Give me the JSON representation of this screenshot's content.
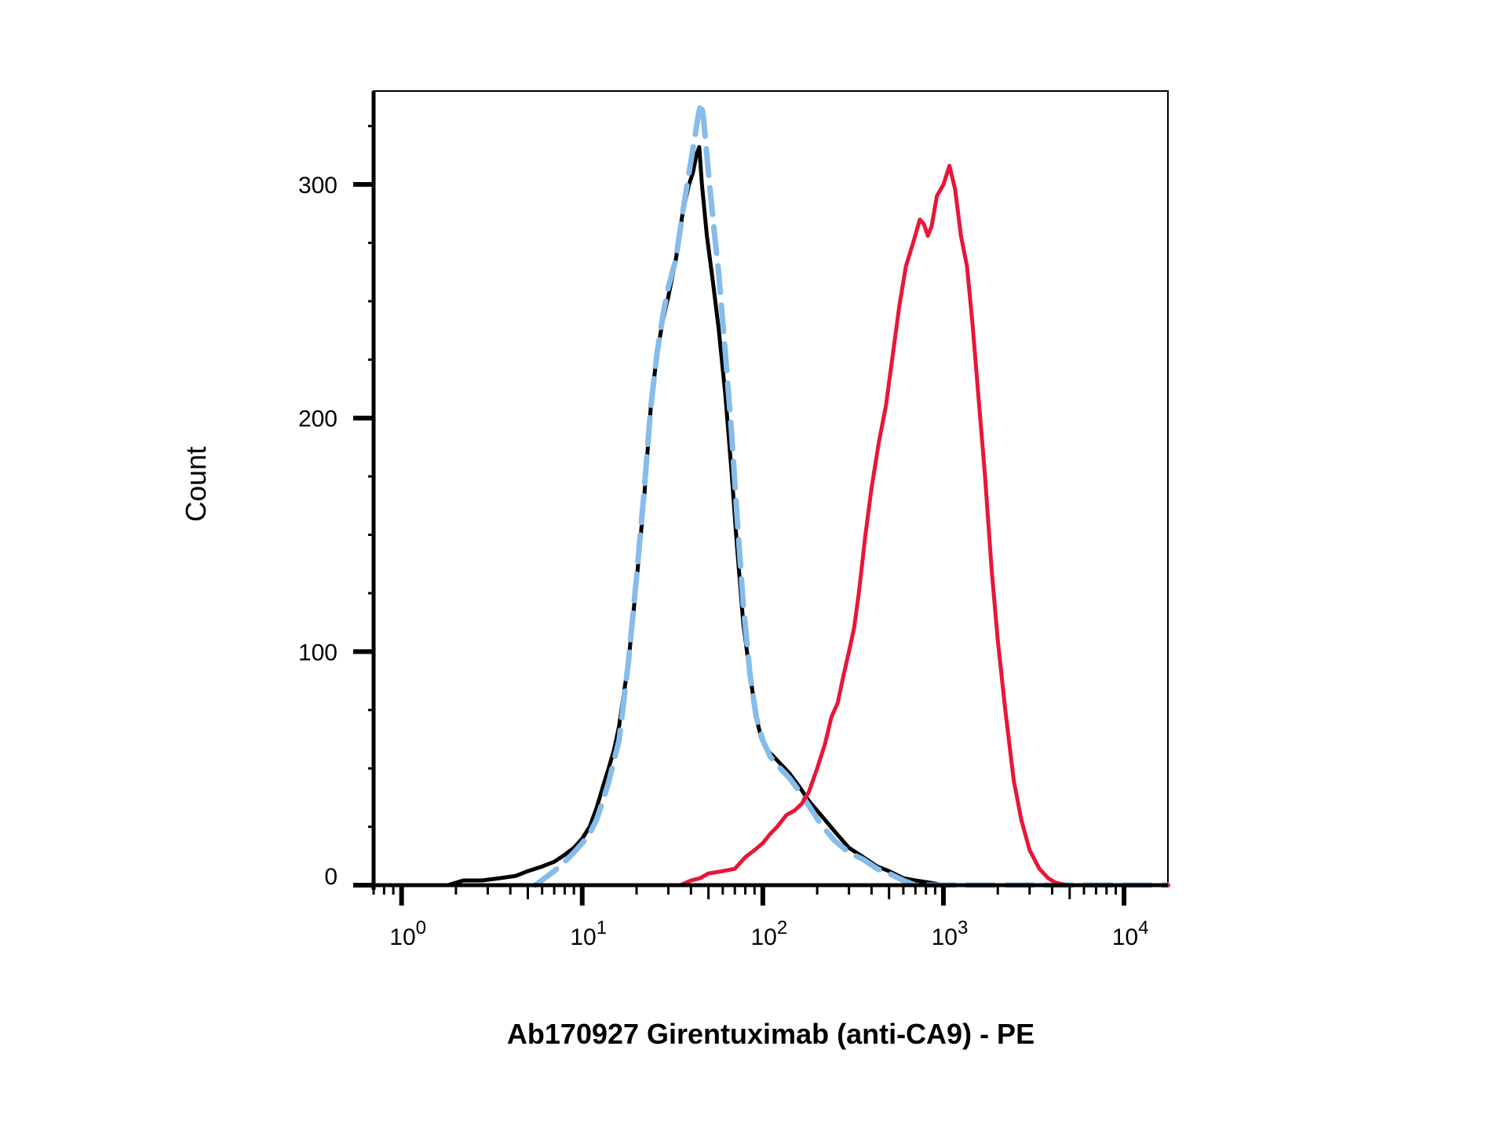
{
  "chart_data": {
    "type": "line",
    "title": "",
    "xlabel": "Ab170927 Girentuximab (anti-CA9) - PE",
    "ylabel": "Count",
    "x_scale": "log",
    "xlim": [
      0.7,
      17500
    ],
    "ylim": [
      0,
      340
    ],
    "x_ticks": [
      {
        "value": 1,
        "base": "10",
        "exp": "0"
      },
      {
        "value": 10,
        "base": "10",
        "exp": "1"
      },
      {
        "value": 100,
        "base": "10",
        "exp": "2"
      },
      {
        "value": 1000,
        "base": "10",
        "exp": "3"
      },
      {
        "value": 10000,
        "base": "10",
        "exp": "4"
      }
    ],
    "y_ticks": [
      {
        "value": 0,
        "label": "0"
      },
      {
        "value": 100,
        "label": "100"
      },
      {
        "value": 200,
        "label": "200"
      },
      {
        "value": 300,
        "label": "300"
      }
    ],
    "y_minor_step": 25,
    "grid": false,
    "legend": "none",
    "series": [
      {
        "color": "#000000",
        "style": "solid",
        "points": [
          [
            0.7,
            0
          ],
          [
            1.8,
            0
          ],
          [
            2.2,
            2
          ],
          [
            2.8,
            2
          ],
          [
            3.5,
            3
          ],
          [
            4.3,
            4
          ],
          [
            5.0,
            6
          ],
          [
            6.0,
            8
          ],
          [
            7.0,
            10
          ],
          [
            8.0,
            13
          ],
          [
            9.0,
            16
          ],
          [
            10.0,
            20
          ],
          [
            11.0,
            25
          ],
          [
            12.0,
            33
          ],
          [
            13.0,
            42
          ],
          [
            14.0,
            50
          ],
          [
            15.0,
            58
          ],
          [
            16.0,
            68
          ],
          [
            18.0,
            95
          ],
          [
            20.0,
            130
          ],
          [
            22.0,
            165
          ],
          [
            24.0,
            205
          ],
          [
            26.0,
            228
          ],
          [
            28.0,
            242
          ],
          [
            30.0,
            252
          ],
          [
            33.0,
            268
          ],
          [
            36.0,
            288
          ],
          [
            39.0,
            300
          ],
          [
            41.0,
            305
          ],
          [
            43.0,
            313
          ],
          [
            44.5,
            316
          ],
          [
            46.0,
            300
          ],
          [
            49.0,
            278
          ],
          [
            53.0,
            258
          ],
          [
            57.0,
            238
          ],
          [
            62.0,
            210
          ],
          [
            67.0,
            178
          ],
          [
            72.0,
            145
          ],
          [
            78.0,
            112
          ],
          [
            85.0,
            90
          ],
          [
            92.0,
            72
          ],
          [
            98.0,
            63
          ],
          [
            105.0,
            58
          ],
          [
            115.0,
            55
          ],
          [
            125.0,
            52
          ],
          [
            140.0,
            48
          ],
          [
            160.0,
            42
          ],
          [
            180.0,
            36
          ],
          [
            210.0,
            30
          ],
          [
            250.0,
            23
          ],
          [
            300.0,
            16
          ],
          [
            360.0,
            12
          ],
          [
            430.0,
            8
          ],
          [
            500.0,
            6
          ],
          [
            600.0,
            3
          ],
          [
            700.0,
            2
          ],
          [
            850.0,
            1
          ],
          [
            1000.0,
            0
          ],
          [
            17500,
            0
          ]
        ]
      },
      {
        "color": "#85BCEB",
        "style": "dashed",
        "points": [
          [
            5.5,
            0
          ],
          [
            7.0,
            6
          ],
          [
            8.0,
            10
          ],
          [
            9.0,
            14
          ],
          [
            10.0,
            18
          ],
          [
            11.0,
            22
          ],
          [
            12.0,
            28
          ],
          [
            13.0,
            36
          ],
          [
            14.0,
            44
          ],
          [
            16.0,
            62
          ],
          [
            18.0,
            95
          ],
          [
            20.0,
            132
          ],
          [
            22.0,
            168
          ],
          [
            24.0,
            205
          ],
          [
            26.0,
            228
          ],
          [
            28.0,
            244
          ],
          [
            30.0,
            256
          ],
          [
            33.0,
            268
          ],
          [
            36.0,
            288
          ],
          [
            39.0,
            305
          ],
          [
            42.0,
            320
          ],
          [
            44.0,
            330
          ],
          [
            45.5,
            335
          ],
          [
            47.0,
            328
          ],
          [
            50.0,
            305
          ],
          [
            53.0,
            285
          ],
          [
            57.0,
            262
          ],
          [
            62.0,
            228
          ],
          [
            67.0,
            195
          ],
          [
            72.0,
            158
          ],
          [
            78.0,
            120
          ],
          [
            85.0,
            90
          ],
          [
            92.0,
            72
          ],
          [
            100.0,
            62
          ],
          [
            110.0,
            55
          ],
          [
            125.0,
            50
          ],
          [
            140.0,
            46
          ],
          [
            160.0,
            40
          ],
          [
            180.0,
            34
          ],
          [
            210.0,
            26
          ],
          [
            250.0,
            19
          ],
          [
            300.0,
            14
          ],
          [
            360.0,
            11
          ],
          [
            430.0,
            7
          ],
          [
            500.0,
            5
          ],
          [
            600.0,
            2
          ],
          [
            700.0,
            0
          ],
          [
            17500,
            0
          ]
        ]
      },
      {
        "color": "#E8163A",
        "style": "solid",
        "points": [
          [
            0.7,
            0
          ],
          [
            35.0,
            0
          ],
          [
            40.0,
            2
          ],
          [
            45.0,
            3
          ],
          [
            50.0,
            5
          ],
          [
            60.0,
            6
          ],
          [
            70.0,
            7
          ],
          [
            80.0,
            12
          ],
          [
            90.0,
            15
          ],
          [
            100.0,
            18
          ],
          [
            110.0,
            22
          ],
          [
            120.0,
            25
          ],
          [
            135.0,
            30
          ],
          [
            150.0,
            32
          ],
          [
            165.0,
            35
          ],
          [
            180.0,
            40
          ],
          [
            200.0,
            50
          ],
          [
            220.0,
            60
          ],
          [
            240.0,
            72
          ],
          [
            260.0,
            78
          ],
          [
            280.0,
            90
          ],
          [
            300.0,
            100
          ],
          [
            320.0,
            110
          ],
          [
            340.0,
            125
          ],
          [
            370.0,
            150
          ],
          [
            400.0,
            170
          ],
          [
            440.0,
            190
          ],
          [
            480.0,
            205
          ],
          [
            520.0,
            225
          ],
          [
            570.0,
            248
          ],
          [
            620.0,
            265
          ],
          [
            680.0,
            275
          ],
          [
            740.0,
            285
          ],
          [
            780.0,
            283
          ],
          [
            820.0,
            278
          ],
          [
            860.0,
            282
          ],
          [
            920.0,
            295
          ],
          [
            1000.0,
            300
          ],
          [
            1080.0,
            308
          ],
          [
            1160.0,
            298
          ],
          [
            1250.0,
            278
          ],
          [
            1350.0,
            265
          ],
          [
            1450.0,
            240
          ],
          [
            1560.0,
            210
          ],
          [
            1700.0,
            175
          ],
          [
            1850.0,
            135
          ],
          [
            2000.0,
            105
          ],
          [
            2200.0,
            75
          ],
          [
            2450.0,
            45
          ],
          [
            2700.0,
            28
          ],
          [
            3000.0,
            15
          ],
          [
            3400.0,
            7
          ],
          [
            3800.0,
            3
          ],
          [
            4200.0,
            1
          ],
          [
            4800.0,
            0
          ],
          [
            17500,
            0
          ]
        ]
      }
    ]
  }
}
